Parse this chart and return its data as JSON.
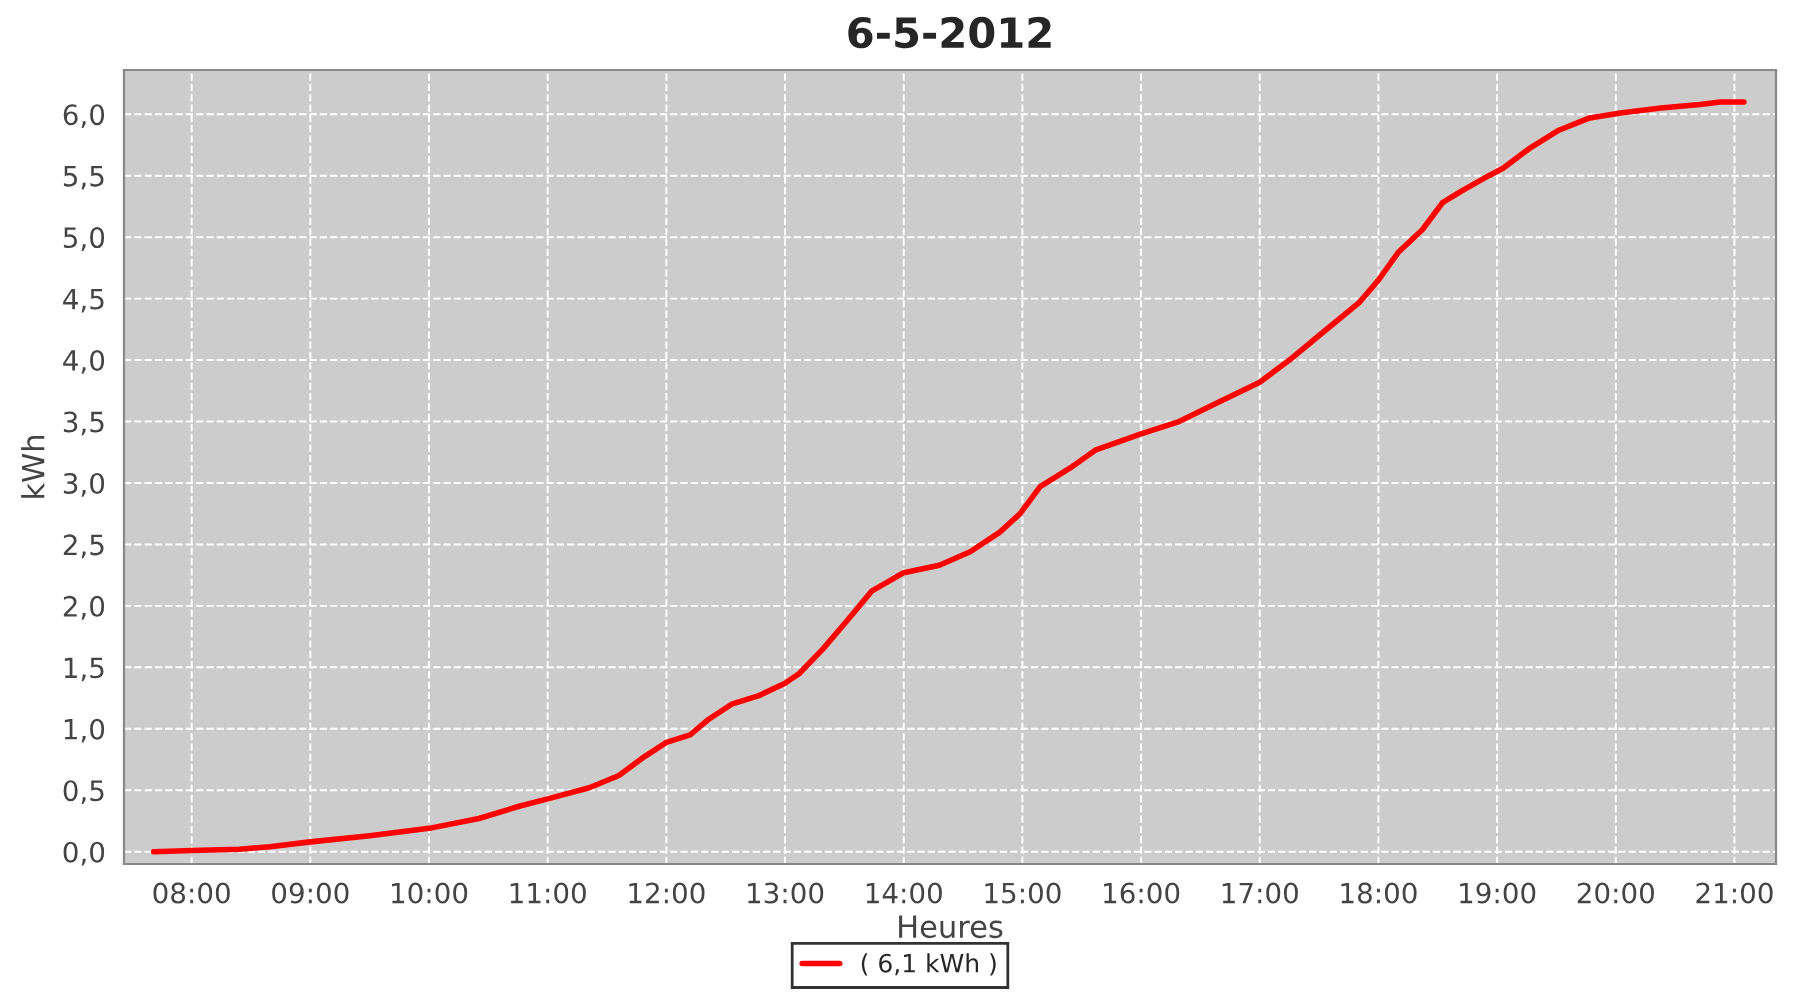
{
  "chart_data": {
    "type": "line",
    "title": "6-5-2012",
    "xlabel": "Heures",
    "ylabel": "kWh",
    "x": [
      7.68,
      8.0,
      8.4,
      8.66,
      9.0,
      9.5,
      10.0,
      10.42,
      10.76,
      11.0,
      11.35,
      11.6,
      11.81,
      12.0,
      12.2,
      12.36,
      12.55,
      12.78,
      13.0,
      13.12,
      13.32,
      13.54,
      13.73,
      14.0,
      14.3,
      14.56,
      14.81,
      14.98,
      15.15,
      15.4,
      15.62,
      16.0,
      16.32,
      16.66,
      17.0,
      17.25,
      17.5,
      17.84,
      18.0,
      18.17,
      18.37,
      18.54,
      18.71,
      18.93,
      19.05,
      19.27,
      19.52,
      19.78,
      20.04,
      20.38,
      20.71,
      20.88,
      21.08
    ],
    "series": [
      {
        "name": "( 6,1 kWh )",
        "color": "#ff0000",
        "values": [
          0.0,
          0.01,
          0.02,
          0.04,
          0.08,
          0.13,
          0.19,
          0.27,
          0.37,
          0.43,
          0.52,
          0.62,
          0.77,
          0.89,
          0.95,
          1.08,
          1.2,
          1.27,
          1.37,
          1.45,
          1.65,
          1.9,
          2.12,
          2.27,
          2.33,
          2.44,
          2.6,
          2.75,
          2.97,
          3.12,
          3.27,
          3.4,
          3.5,
          3.66,
          3.82,
          4.0,
          4.2,
          4.47,
          4.65,
          4.88,
          5.06,
          5.28,
          5.38,
          5.5,
          5.56,
          5.72,
          5.87,
          5.97,
          6.01,
          6.05,
          6.08,
          6.1,
          6.1
        ]
      }
    ],
    "xlim": [
      7.43,
      21.35
    ],
    "xticks": [
      {
        "value": 8,
        "label": "08:00"
      },
      {
        "value": 9,
        "label": "09:00"
      },
      {
        "value": 10,
        "label": "10:00"
      },
      {
        "value": 11,
        "label": "11:00"
      },
      {
        "value": 12,
        "label": "12:00"
      },
      {
        "value": 13,
        "label": "13:00"
      },
      {
        "value": 14,
        "label": "14:00"
      },
      {
        "value": 15,
        "label": "15:00"
      },
      {
        "value": 16,
        "label": "16:00"
      },
      {
        "value": 17,
        "label": "17:00"
      },
      {
        "value": 18,
        "label": "18:00"
      },
      {
        "value": 19,
        "label": "19:00"
      },
      {
        "value": 20,
        "label": "20:00"
      },
      {
        "value": 21,
        "label": "21:00"
      }
    ],
    "ylim": [
      -0.1,
      6.36
    ],
    "yticks": [
      {
        "value": 0,
        "label": "0,0"
      },
      {
        "value": 0.5,
        "label": "0,5"
      },
      {
        "value": 1,
        "label": "1,0"
      },
      {
        "value": 1.5,
        "label": "1,5"
      },
      {
        "value": 2,
        "label": "2,0"
      },
      {
        "value": 2.5,
        "label": "2,5"
      },
      {
        "value": 3,
        "label": "3,0"
      },
      {
        "value": 3.5,
        "label": "3,5"
      },
      {
        "value": 4,
        "label": "4,0"
      },
      {
        "value": 4.5,
        "label": "4,5"
      },
      {
        "value": 5,
        "label": "5,0"
      },
      {
        "value": 5.5,
        "label": "5,5"
      },
      {
        "value": 6,
        "label": "6,0"
      }
    ],
    "grid": true,
    "legend": "bottom",
    "marker": "none",
    "line_style": "solid"
  }
}
